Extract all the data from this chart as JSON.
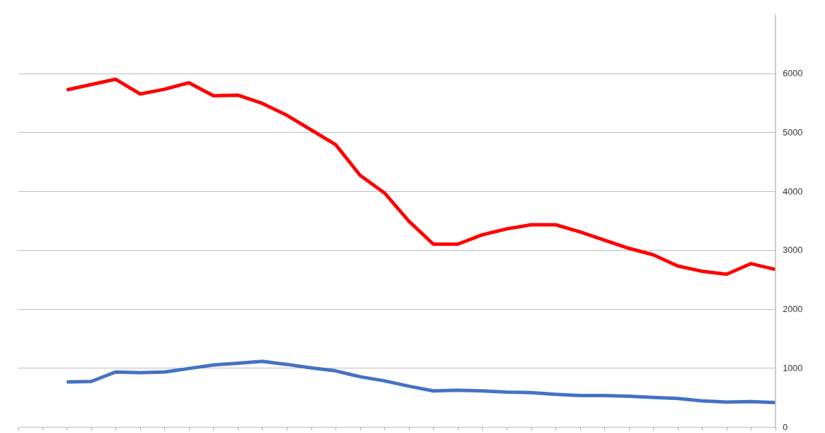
{
  "chart_data": {
    "type": "line",
    "categories": [
      null,
      null,
      null,
      null,
      null,
      null,
      null,
      null,
      null,
      null,
      null,
      null,
      null,
      null,
      null,
      null,
      null,
      null,
      null,
      null,
      null,
      null,
      null,
      null,
      null,
      null,
      null,
      null,
      null,
      null,
      null,
      null
    ],
    "series": [
      {
        "color": "#ff0000",
        "values": [
          null,
          null,
          5720,
          5810,
          5900,
          5650,
          5730,
          5840,
          5620,
          5630,
          5490,
          5290,
          5040,
          4790,
          4270,
          3970,
          3490,
          3100,
          3100,
          3260,
          3360,
          3430,
          3430,
          3310,
          3170,
          3030,
          2920,
          2730,
          2640,
          2590,
          2770,
          2670
        ]
      },
      {
        "color": "#4472c4",
        "values": [
          null,
          null,
          760,
          770,
          930,
          920,
          930,
          990,
          1050,
          1080,
          1110,
          1060,
          1000,
          950,
          850,
          780,
          690,
          610,
          620,
          610,
          590,
          580,
          550,
          530,
          530,
          520,
          500,
          480,
          440,
          420,
          430,
          410
        ]
      }
    ],
    "ylim": [
      0,
      7000
    ],
    "yticks": [
      0,
      1000,
      2000,
      3000,
      4000,
      5000,
      6000
    ],
    "grid": "y",
    "tick_labels": "y",
    "marker": "none",
    "line_style": "solid"
  }
}
